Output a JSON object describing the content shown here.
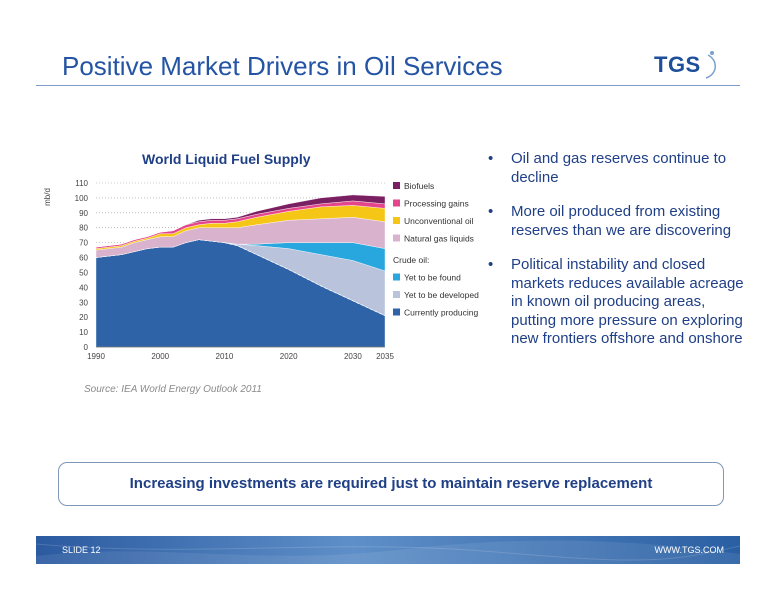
{
  "slide": {
    "title": "Positive Market Drivers in Oil Services",
    "logo_text": "TGS",
    "source": "Source: IEA World Energy Outlook 2011",
    "callout": "Increasing investments are required just to maintain reserve replacement",
    "footer_left": "SLIDE 12",
    "footer_right": "WWW.TGS.COM",
    "bullets": [
      "Oil and gas reserves continue to decline",
      "More oil produced from existing reserves than we are discovering",
      "Political instability and closed markets reduces available acreage in known oil producing areas, putting more pressure on exploring new frontiers offshore and onshore"
    ],
    "colors": {
      "accent": "#2454a3",
      "text_dark_blue": "#1f3f86",
      "footer": "#2b5aa0"
    }
  },
  "chart_data": {
    "type": "area",
    "title": "World Liquid Fuel Supply",
    "ylabel": "mb/d",
    "xlabel": "",
    "xlim": [
      1990,
      2035
    ],
    "ylim": [
      0,
      110
    ],
    "yticks": [
      0,
      10,
      20,
      30,
      40,
      50,
      60,
      70,
      80,
      90,
      100,
      110
    ],
    "xticks": [
      1990,
      2000,
      2010,
      2020,
      2030,
      2035
    ],
    "grid": true,
    "legend_position": "right",
    "x": [
      1990,
      1992,
      1994,
      1996,
      1998,
      2000,
      2002,
      2004,
      2006,
      2008,
      2010,
      2012,
      2015,
      2020,
      2025,
      2030,
      2035
    ],
    "series": [
      {
        "name": "Currently producing",
        "color": "#2e63a8",
        "values": [
          60,
          61,
          62,
          64,
          66,
          67,
          67,
          70,
          72,
          71,
          70,
          68,
          62,
          52,
          41,
          31,
          21
        ]
      },
      {
        "name": "Yet to be developed",
        "color": "#b9c3dc",
        "values": [
          0,
          0,
          0,
          0,
          0,
          0,
          0,
          0,
          0,
          0,
          0,
          1,
          6,
          14,
          21,
          27,
          30
        ]
      },
      {
        "name": "Yet to be found",
        "color": "#28a6de",
        "values": [
          0,
          0,
          0,
          0,
          0,
          0,
          0,
          0,
          0,
          0,
          0,
          0,
          1,
          4,
          8,
          12,
          15
        ]
      },
      {
        "name": "Natural gas liquids",
        "color": "#d9b2cd",
        "values": [
          5,
          5,
          5,
          6,
          6,
          7,
          7,
          8,
          8,
          9,
          10,
          11,
          13,
          15,
          16,
          17,
          18
        ]
      },
      {
        "name": "Unconventional oil",
        "color": "#f6c616",
        "values": [
          1,
          1,
          1,
          1,
          1,
          2,
          2,
          2,
          2,
          3,
          3,
          4,
          5,
          6,
          8,
          8,
          9
        ]
      },
      {
        "name": "Processing gains",
        "color": "#e4458b",
        "values": [
          1,
          1,
          1,
          1,
          1,
          1,
          2,
          2,
          2,
          2,
          2,
          2,
          2,
          2,
          2,
          3,
          3
        ]
      },
      {
        "name": "Biofuels",
        "color": "#7b1f63",
        "values": [
          0,
          0,
          0,
          0,
          0,
          0,
          0,
          0,
          1,
          1,
          1,
          1,
          2,
          3,
          4,
          4,
          5
        ]
      }
    ],
    "legend": [
      {
        "label": "Biofuels",
        "color": "#7b1f63"
      },
      {
        "label": "Processing gains",
        "color": "#e4458b"
      },
      {
        "label": "Unconventional oil",
        "color": "#f6c616"
      },
      {
        "label": "Natural gas liquids",
        "color": "#d9b2cd"
      },
      {
        "label": "Crude oil:",
        "color": ""
      },
      {
        "label": "Yet to be found",
        "color": "#28a6de"
      },
      {
        "label": "Yet to be developed",
        "color": "#b9c3dc"
      },
      {
        "label": "Currently producing",
        "color": "#2e63a8"
      }
    ]
  }
}
